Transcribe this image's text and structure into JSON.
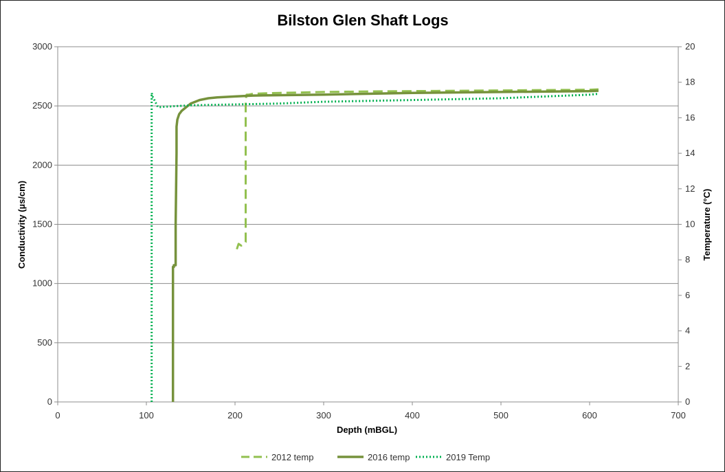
{
  "chart_data": {
    "type": "line",
    "title": "Bilston Glen Shaft Logs",
    "xlabel": "Depth (mBGL)",
    "ylabel": "Conductivity (µs/cm)",
    "y2label": "Temperature (°C)",
    "xlim": [
      0,
      700
    ],
    "ylim": [
      0,
      3000
    ],
    "y2lim": [
      0,
      20
    ],
    "x_ticks": [
      "0",
      "100",
      "200",
      "300",
      "400",
      "500",
      "600",
      "700"
    ],
    "y_ticks": [
      "0",
      "500",
      "1000",
      "1500",
      "2000",
      "2500",
      "3000"
    ],
    "y2_ticks": [
      "0",
      "2",
      "4",
      "6",
      "8",
      "10",
      "12",
      "14",
      "16",
      "18",
      "20"
    ],
    "grid": "horizontal major",
    "legend": "bottom",
    "series": [
      {
        "name": "2012 temp",
        "axis": "y2",
        "color": "#92c04f",
        "dash": "dashed",
        "x": [
          202,
          204,
          207,
          210,
          212,
          212,
          212,
          212,
          213,
          215,
          220,
          250,
          300,
          350,
          400,
          450,
          500,
          550,
          600,
          610
        ],
        "y": [
          8.6,
          8.9,
          8.8,
          8.9,
          9.0,
          12.0,
          15.0,
          17.0,
          17.3,
          17.3,
          17.35,
          17.4,
          17.45,
          17.48,
          17.5,
          17.52,
          17.54,
          17.56,
          17.58,
          17.6
        ]
      },
      {
        "name": "2016 temp",
        "axis": "y2",
        "color": "#76923c",
        "dash": "solid",
        "x": [
          130,
          130,
          131,
          131,
          133,
          133,
          134,
          134,
          135,
          137,
          140,
          145,
          150,
          160,
          170,
          180,
          200,
          220,
          300,
          400,
          500,
          600,
          610
        ],
        "y": [
          0,
          7.6,
          7.6,
          7.7,
          7.7,
          10.0,
          14.0,
          15.5,
          15.9,
          16.2,
          16.4,
          16.6,
          16.8,
          17.0,
          17.1,
          17.15,
          17.2,
          17.25,
          17.3,
          17.4,
          17.45,
          17.5,
          17.52
        ]
      },
      {
        "name": "2019 Temp",
        "axis": "y2",
        "color": "#00b050",
        "dash": "dotted",
        "x": [
          106,
          106,
          106,
          107,
          110,
          113,
          116,
          120,
          150,
          200,
          250,
          300,
          400,
          500,
          600,
          610
        ],
        "y": [
          0,
          16.0,
          17.4,
          17.2,
          16.9,
          16.6,
          16.6,
          16.62,
          16.7,
          16.75,
          16.8,
          16.9,
          17.0,
          17.1,
          17.3,
          17.35
        ]
      }
    ]
  }
}
